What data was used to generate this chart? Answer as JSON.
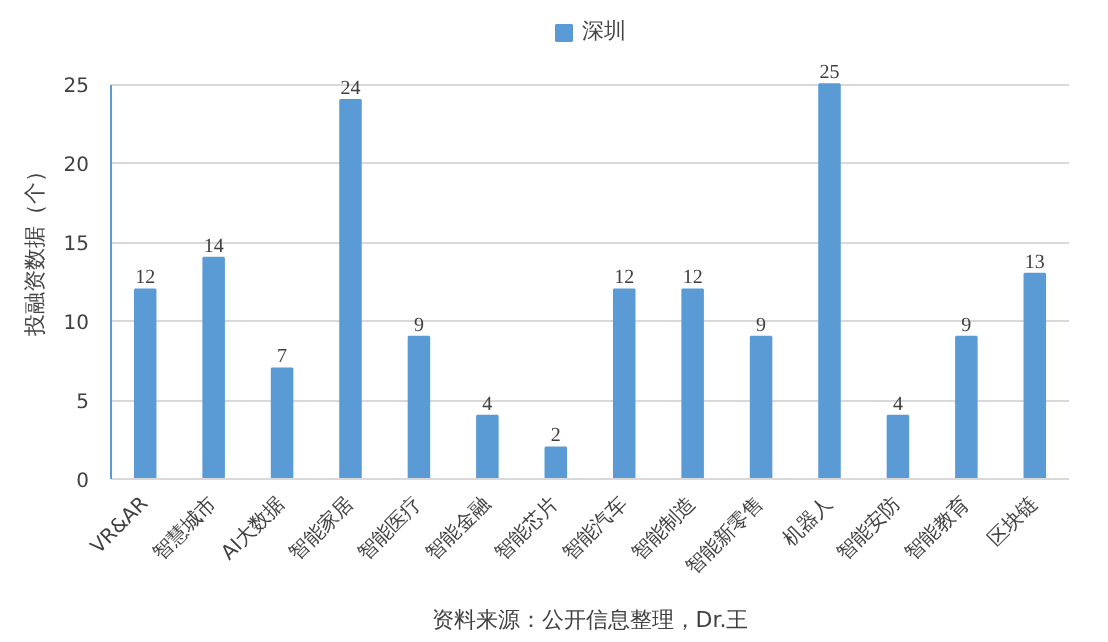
{
  "chart_data": {
    "type": "bar",
    "ylabel": "投融资数据（个）",
    "categories": [
      "VR&AR",
      "智慧城市",
      "AI大数据",
      "智能家居",
      "智能医疗",
      "智能金融",
      "智能芯片",
      "智能汽车",
      "智能制造",
      "智能新零售",
      "机器人",
      "智能安防",
      "智能教育",
      "区块链"
    ],
    "series": [
      {
        "name": "深圳",
        "color": "#5b9bd5",
        "values": [
          12,
          14,
          7,
          24,
          9,
          4,
          2,
          12,
          12,
          9,
          25,
          4,
          9,
          13
        ]
      }
    ],
    "ylim": [
      0,
      25
    ],
    "yticks": [
      0,
      5,
      10,
      15,
      20,
      25
    ],
    "grid": "y",
    "legend": "top",
    "data_labels": true,
    "annotations": [
      "资料来源：公开信息整理，Dr.王"
    ]
  }
}
